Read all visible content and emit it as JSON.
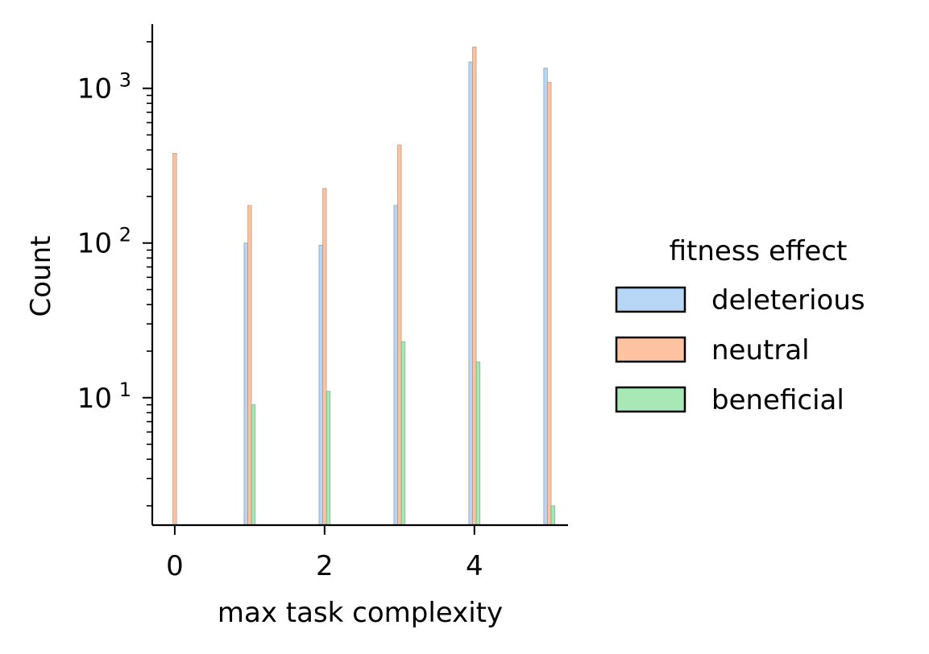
{
  "chart_data": {
    "type": "bar",
    "xlabel": "max task complexity",
    "ylabel": "Count",
    "yscale": "log",
    "ylim": [
      1.5,
      2600
    ],
    "xlim": [
      -0.3,
      5.25
    ],
    "x_ticks": [
      0,
      2,
      4
    ],
    "y_ticks": [
      {
        "value": 10,
        "base": "10",
        "exp": "1"
      },
      {
        "value": 100,
        "base": "10",
        "exp": "2"
      },
      {
        "value": 1000,
        "base": "10",
        "exp": "3"
      }
    ],
    "grid": false,
    "legend": {
      "title": "fitness effect",
      "position": "right"
    },
    "categories": [
      0,
      1,
      2,
      3,
      4,
      5
    ],
    "series": [
      {
        "name": "deleterious",
        "color": "#b7d6f5",
        "edge": "#8fa3b8",
        "offset": -0.05,
        "values": [
          null,
          100,
          97,
          175,
          1480,
          1350
        ]
      },
      {
        "name": "neutral",
        "color": "#fdc3a0",
        "edge": "#c29a82",
        "offset": 0.0,
        "values": [
          380,
          175,
          225,
          430,
          1850,
          1090
        ]
      },
      {
        "name": "beneficial",
        "color": "#a6e8b6",
        "edge": "#7fb38b",
        "offset": 0.05,
        "values": [
          null,
          9,
          11,
          23,
          17,
          2
        ]
      }
    ]
  }
}
